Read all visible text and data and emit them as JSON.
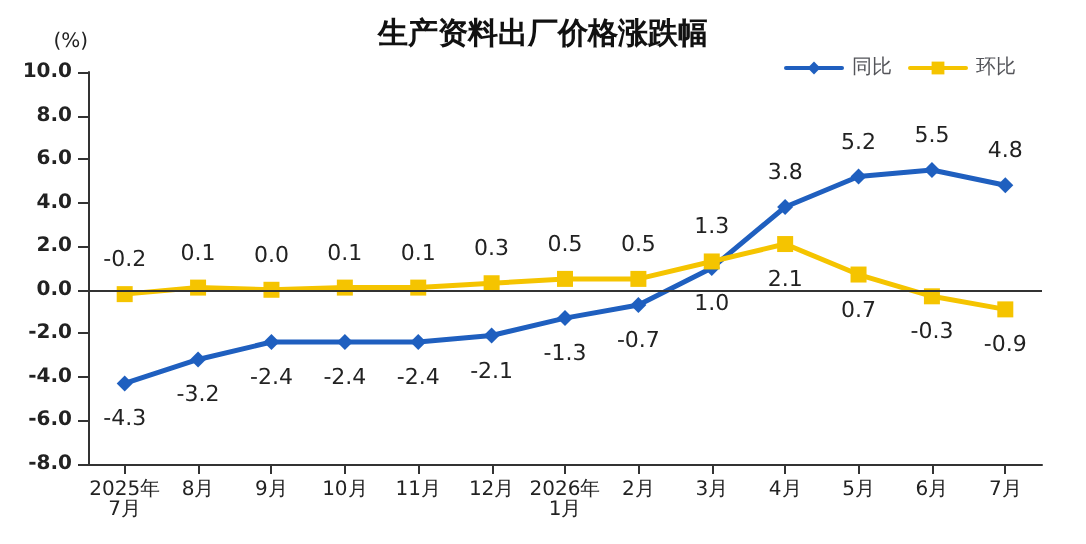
{
  "chart_data": {
    "type": "line",
    "title": "生产资料出厂价格涨跌幅",
    "ylabel": "(%)",
    "categories": [
      "2025年\n7月",
      "8月",
      "9月",
      "10月",
      "11月",
      "12月",
      "2026年\n1月",
      "2月",
      "3月",
      "4月",
      "5月",
      "6月",
      "7月"
    ],
    "series": [
      {
        "name": "同比",
        "color": "#1f5fbf",
        "marker": "diamond",
        "values": [
          -4.3,
          -3.2,
          -2.4,
          -2.4,
          -2.4,
          -2.1,
          -1.3,
          -0.7,
          1.0,
          3.8,
          5.2,
          5.5,
          4.8
        ],
        "value_labels": [
          "-4.3",
          "-3.2",
          "-2.4",
          "-2.4",
          "-2.4",
          "-2.1",
          "-1.3",
          "-0.7",
          "1.0",
          "3.8",
          "5.2",
          "5.5",
          "4.8"
        ]
      },
      {
        "name": "环比",
        "color": "#f5c400",
        "marker": "square",
        "values": [
          -0.2,
          0.1,
          0.0,
          0.1,
          0.1,
          0.3,
          0.5,
          0.5,
          1.3,
          2.1,
          0.7,
          -0.3,
          -0.9
        ],
        "value_labels": [
          "-0.2",
          "0.1",
          "0.0",
          "0.1",
          "0.1",
          "0.3",
          "0.5",
          "0.5",
          "1.3",
          "2.1",
          "0.7",
          "-0.3",
          "-0.9"
        ]
      }
    ],
    "ylim": [
      -8,
      10
    ],
    "yticks": [
      {
        "value": -8,
        "label": "-8.0"
      },
      {
        "value": -6,
        "label": "-6.0"
      },
      {
        "value": -4,
        "label": "-4.0"
      },
      {
        "value": -2,
        "label": "-2.0"
      },
      {
        "value": 0,
        "label": "0.0"
      },
      {
        "value": 2,
        "label": "2.0"
      },
      {
        "value": 4,
        "label": "4.0"
      },
      {
        "value": 6,
        "label": "6.0"
      },
      {
        "value": 8,
        "label": "8.0"
      },
      {
        "value": 10,
        "label": "10.0"
      }
    ],
    "ref_lines": [
      {
        "axis": "y",
        "value": 0,
        "color": "#333333"
      }
    ],
    "grid": false,
    "legend": "top right",
    "line_style": "solid"
  }
}
